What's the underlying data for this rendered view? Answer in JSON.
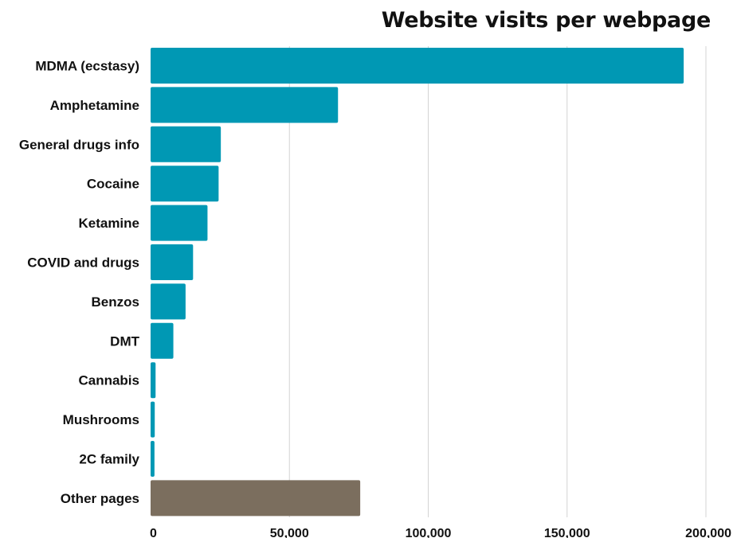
{
  "chart_data": {
    "type": "bar",
    "orientation": "horizontal",
    "title": "Website visits per webpage",
    "xlabel": "",
    "ylabel": "",
    "xlim": [
      0,
      200000
    ],
    "ticks": [
      0,
      50000,
      100000,
      150000,
      200000
    ],
    "tick_labels": [
      "0",
      "50,000",
      "100,000",
      "150,000",
      "200,000"
    ],
    "grid": true,
    "categories": [
      "MDMA (ecstasy)",
      "Amphetamine",
      "General drugs info",
      "Cocaine",
      "Ketamine",
      "COVID and drugs",
      "Benzos",
      "DMT",
      "Cannabis",
      "Mushrooms",
      "2C family",
      "Other pages"
    ],
    "values": [
      192000,
      67500,
      25300,
      24500,
      20500,
      15300,
      12600,
      8200,
      1800,
      1500,
      1400,
      75500
    ],
    "colors": [
      "#0098b4",
      "#0098b4",
      "#0098b4",
      "#0098b4",
      "#0098b4",
      "#0098b4",
      "#0098b4",
      "#0098b4",
      "#0098b4",
      "#0098b4",
      "#0098b4",
      "#7b6e5e"
    ]
  }
}
